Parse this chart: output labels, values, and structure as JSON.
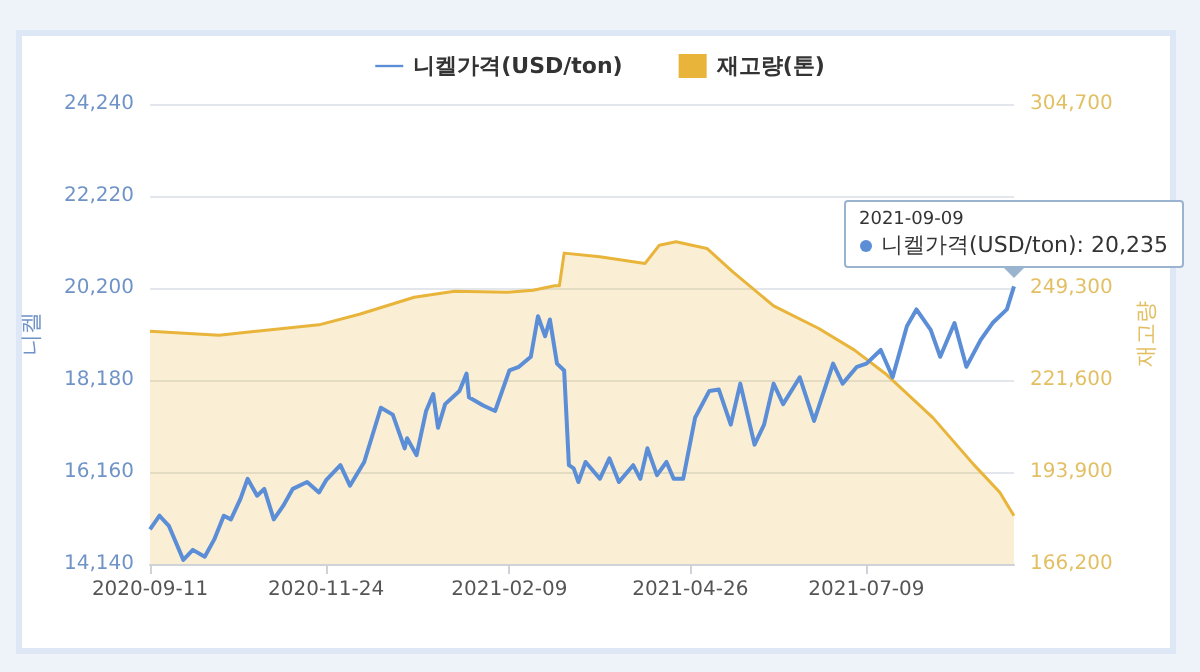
{
  "chart_data": {
    "type": "line",
    "xlim": [
      "2020-09-11",
      "2021-09-09"
    ],
    "xticks": [
      "2020-09-11",
      "2020-11-24",
      "2021-02-09",
      "2021-04-26",
      "2021-07-09"
    ],
    "ylabel": "니켈",
    "y2label": "재고량",
    "ylim": [
      14140,
      24240
    ],
    "yticks": [
      {
        "value": 14140,
        "label": "14,140"
      },
      {
        "value": 16160,
        "label": "16,160"
      },
      {
        "value": 18180,
        "label": "18,180"
      },
      {
        "value": 20200,
        "label": "20,200"
      },
      {
        "value": 22220,
        "label": "22,220"
      },
      {
        "value": 24240,
        "label": "24,240"
      }
    ],
    "y2lim": [
      166200,
      304700
    ],
    "y2ticks": [
      {
        "value": 166200,
        "label": "166,200"
      },
      {
        "value": 193900,
        "label": "193,900"
      },
      {
        "value": 221600,
        "label": "221,600"
      },
      {
        "value": 249300,
        "label": "249,300"
      },
      {
        "value": 277000,
        "label": null
      },
      {
        "value": 304700,
        "label": "304,700"
      }
    ],
    "grid": "y",
    "legend": "top",
    "marker": "none",
    "line_style": "solid",
    "annotations": [
      "2021-09-09",
      {
        "text": "니켈가격(USD/ton): 20,235",
        "x": "2021-09-09",
        "y": 20235
      }
    ],
    "series": [
      {
        "name": "니켈가격(USD/ton)",
        "color": "#5b8ed6",
        "x": [
          "2020-09-11",
          "2020-09-15",
          "2020-09-19",
          "2020-09-25",
          "2020-09-29",
          "2020-10-04",
          "2020-10-08",
          "2020-10-12",
          "2020-10-15",
          "2020-10-19",
          "2020-10-22",
          "2020-10-26",
          "2020-10-29",
          "2020-11-02",
          "2020-11-06",
          "2020-11-10",
          "2020-11-16",
          "2020-11-21",
          "2020-11-24",
          "2020-11-30",
          "2020-12-04",
          "2020-12-10",
          "2020-12-17",
          "2020-12-22",
          "2020-12-27",
          "2020-12-28",
          "2021-01-01",
          "2021-01-05",
          "2021-01-08",
          "2021-01-10",
          "2021-01-13",
          "2021-01-19",
          "2021-01-22",
          "2021-01-23",
          "2021-01-29",
          "2021-02-03",
          "2021-02-09",
          "2021-02-13",
          "2021-02-18",
          "2021-02-21",
          "2021-02-24",
          "2021-02-26",
          "2021-03-01",
          "2021-03-04",
          "2021-03-06",
          "2021-03-08",
          "2021-03-10",
          "2021-03-13",
          "2021-03-19",
          "2021-03-23",
          "2021-03-27",
          "2021-04-02",
          "2021-04-05",
          "2021-04-08",
          "2021-04-12",
          "2021-04-16",
          "2021-04-19",
          "2021-04-23",
          "2021-04-28",
          "2021-05-04",
          "2021-05-08",
          "2021-05-13",
          "2021-05-17",
          "2021-05-23",
          "2021-05-27",
          "2021-05-31",
          "2021-06-04",
          "2021-06-11",
          "2021-06-17",
          "2021-06-25",
          "2021-06-29",
          "2021-07-05",
          "2021-07-09",
          "2021-07-15",
          "2021-07-20",
          "2021-07-26",
          "2021-07-30",
          "2021-08-05",
          "2021-08-09",
          "2021-08-15",
          "2021-08-20",
          "2021-08-26",
          "2021-08-31",
          "2021-09-06",
          "2021-09-09"
        ],
        "values": [
          14900,
          15200,
          14970,
          14230,
          14450,
          14300,
          14680,
          15200,
          15120,
          15570,
          16010,
          15640,
          15790,
          15120,
          15420,
          15790,
          15940,
          15710,
          15980,
          16310,
          15860,
          16380,
          17570,
          17420,
          16680,
          16900,
          16530,
          17500,
          17870,
          17130,
          17650,
          17940,
          18320,
          17800,
          17620,
          17500,
          18390,
          18470,
          18690,
          19580,
          19140,
          19510,
          18540,
          18390,
          16310,
          16240,
          15940,
          16380,
          16010,
          16460,
          15940,
          16310,
          16010,
          16680,
          16090,
          16380,
          16010,
          16010,
          17350,
          17940,
          17970,
          17200,
          18100,
          16760,
          17200,
          18100,
          17650,
          18240,
          17280,
          18540,
          18100,
          18470,
          18540,
          18840,
          18240,
          19360,
          19730,
          19280,
          18690,
          19430,
          18470,
          19060,
          19430,
          19730,
          20235
        ]
      },
      {
        "name": "재고량(톤)",
        "type": "area",
        "axis": "y2",
        "color": "#e8b43a",
        "x": [
          "2020-09-11",
          "2020-10-10",
          "2020-11-21",
          "2020-12-08",
          "2020-12-31",
          "2021-01-17",
          "2021-02-08",
          "2021-02-19",
          "2021-02-28",
          "2021-03-02",
          "2021-03-04",
          "2021-03-19",
          "2021-04-07",
          "2021-04-13",
          "2021-04-20",
          "2021-05-03",
          "2021-05-14",
          "2021-05-31",
          "2021-06-19",
          "2021-07-04",
          "2021-07-17",
          "2021-08-06",
          "2021-08-23",
          "2021-09-03",
          "2021-09-09"
        ],
        "values": [
          236300,
          235100,
          238200,
          241400,
          246500,
          248300,
          248000,
          248600,
          250000,
          250000,
          259800,
          258700,
          256700,
          262200,
          263200,
          261200,
          254100,
          243900,
          237100,
          230600,
          223500,
          210200,
          196200,
          187800,
          180700
        ]
      }
    ]
  }
}
